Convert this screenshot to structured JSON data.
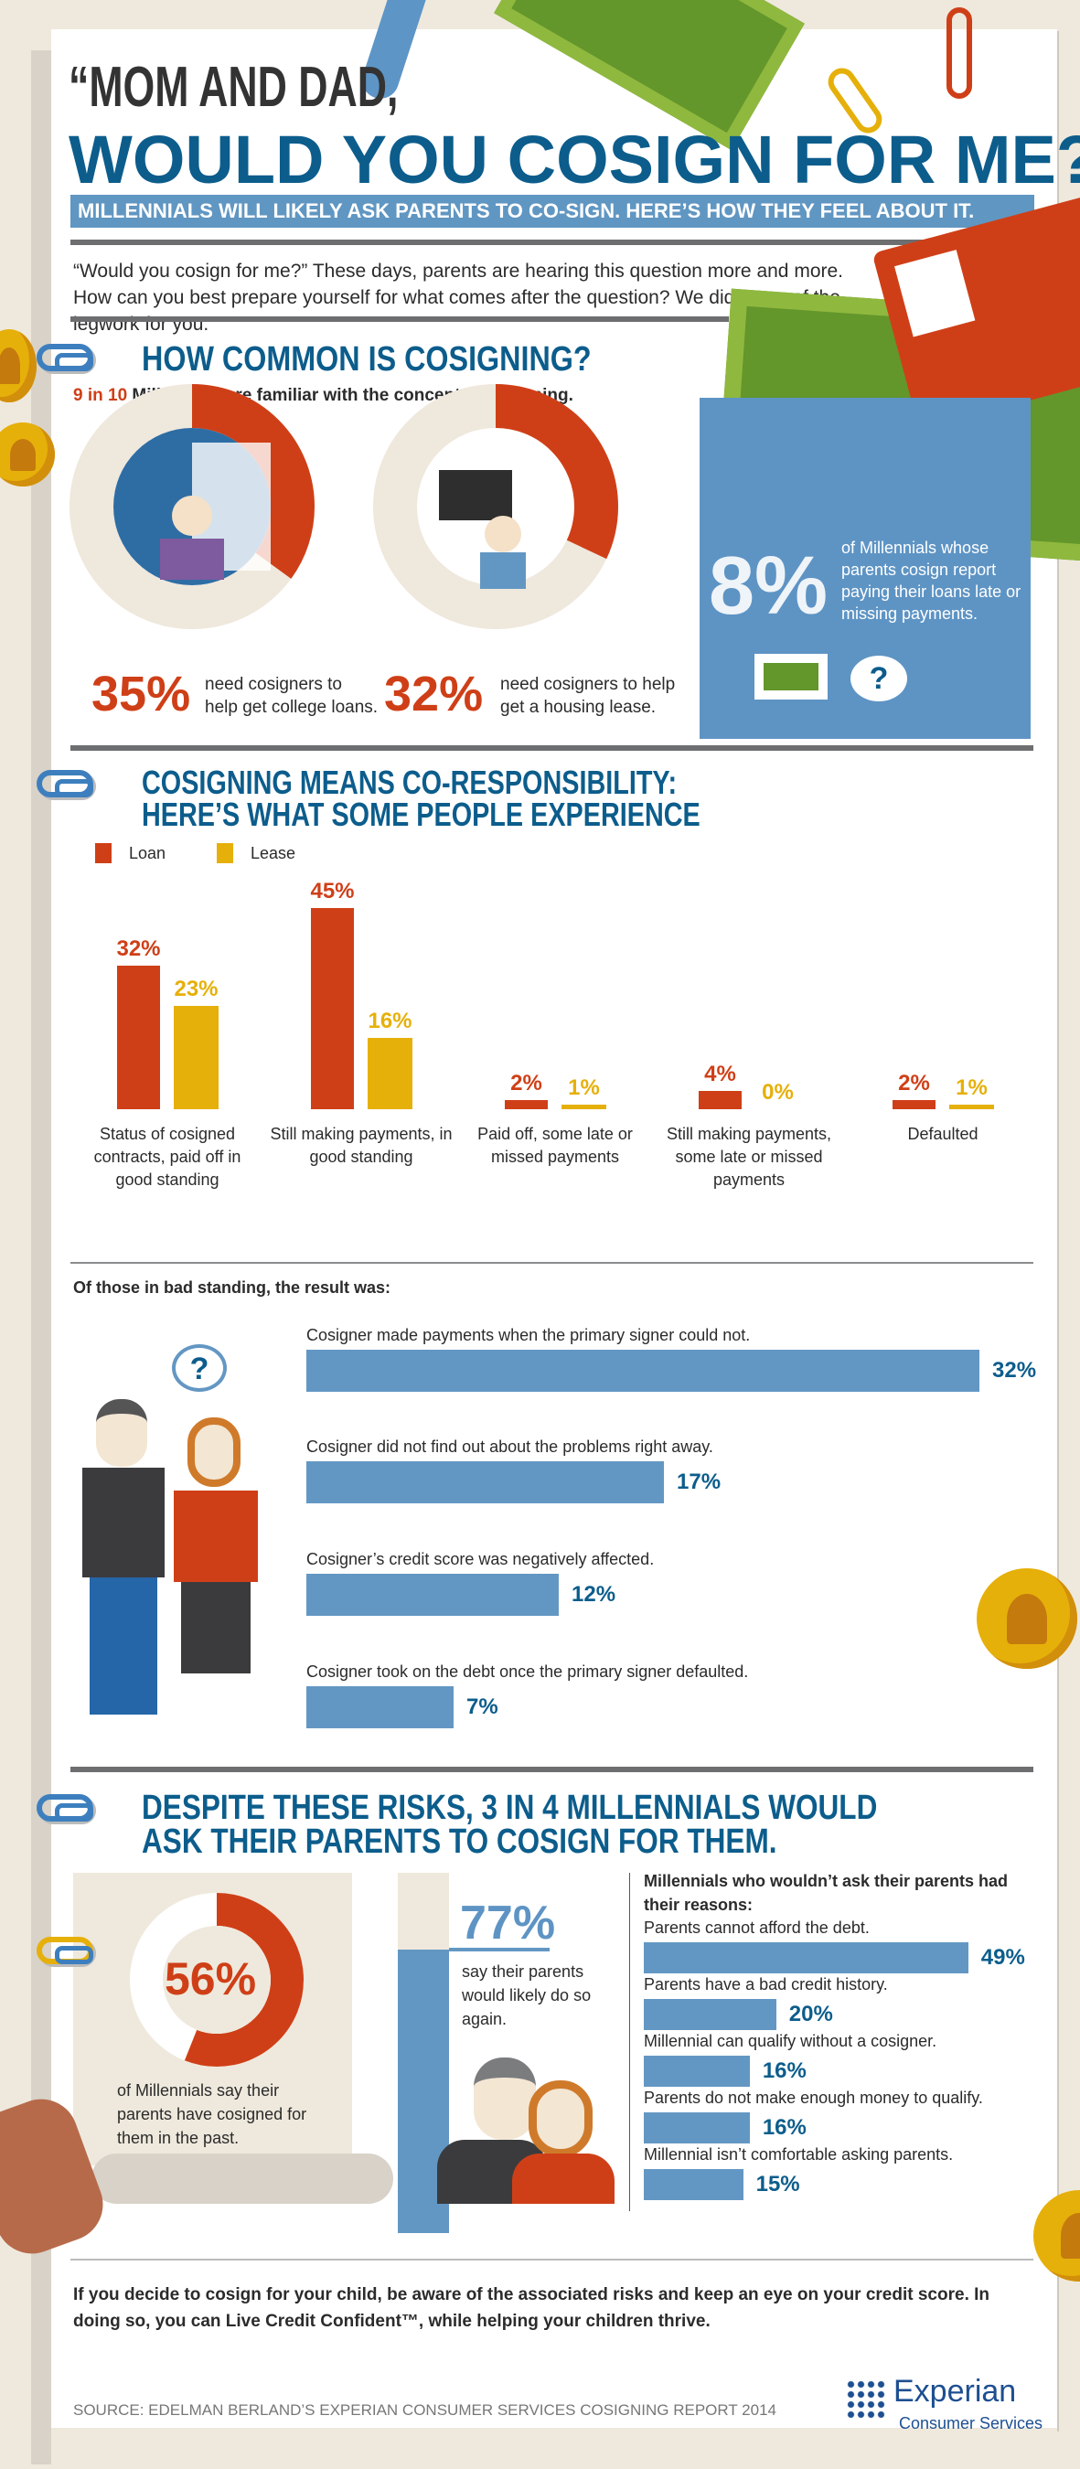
{
  "header": {
    "title_line1": "“MOM AND DAD,",
    "title_line2": "WOULD YOU COSIGN FOR ME?”",
    "banner": "MILLENNIALS WILL LIKELY ASK PARENTS TO CO-SIGN. HERE’S HOW THEY FEEL ABOUT IT.",
    "intro": "“Would you cosign for me?” These days, parents are hearing this question more and more. How can you best prepare yourself for what comes after the question? We did some of the legwork for you."
  },
  "section1": {
    "heading": "HOW COMMON IS COSIGNING?",
    "familiar_highlight": "9 in 10",
    "familiar_text": " Millennials are familiar with the concept of cosigning.",
    "stats": [
      {
        "value": "35%",
        "fraction": 0.35,
        "caption": "need cosigners to help get college loans."
      },
      {
        "value": "32%",
        "fraction": 0.32,
        "caption": "need cosigners to help get a housing lease."
      }
    ],
    "card_value": "8%",
    "card_text": "of Millennials whose parents cosign report paying their loans late or missing payments.",
    "card_bubble": "?"
  },
  "section2": {
    "heading_line1": "COSIGNING MEANS CO-RESPONSIBILITY:",
    "heading_line2": "HERE’S WHAT SOME PEOPLE EXPERIENCE",
    "bad_standing_title": "Of those in bad standing, the result was:",
    "bubble": "?"
  },
  "section3": {
    "heading_line1": "DESPITE THESE RISKS, 3 IN 4 MILLENNIALS WOULD",
    "heading_line2": "ASK THEIR PARENTS TO COSIGN FOR THEM.",
    "donut_value": "56%",
    "donut_fraction": 0.56,
    "donut_caption": "of Millennials say their parents have cosigned for them in the past.",
    "again_value": "77%",
    "again_caption": "say their parents would likely do so again.",
    "reasons_title": "Millennials who wouldn’t ask their parents had their reasons:"
  },
  "chart_data": [
    {
      "type": "bar",
      "categories": [
        "Status of cosigned contracts, paid off in good standing",
        "Still making payments, in good standing",
        "Paid off, some late or missed payments",
        "Still making payments, some late or missed payments",
        "Defaulted"
      ],
      "series": [
        {
          "name": "Loan",
          "color": "#cf3f17",
          "values": [
            32,
            45,
            2,
            4,
            2
          ]
        },
        {
          "name": "Lease",
          "color": "#e6b00a",
          "values": [
            23,
            16,
            1,
            0,
            1
          ]
        }
      ],
      "legend": "top-left"
    },
    {
      "type": "bar",
      "orientation": "horizontal",
      "categories": [
        "Cosigner made payments when the primary signer could not.",
        "Cosigner did not find out about the problems right away.",
        "Cosigner’s credit score was negatively affected.",
        "Cosigner took on the debt once the primary signer defaulted."
      ],
      "values": [
        32,
        17,
        12,
        7
      ],
      "color": "#6397c3"
    },
    {
      "type": "bar",
      "orientation": "horizontal",
      "categories": [
        "Parents cannot afford the debt.",
        "Parents have a bad credit history.",
        "Millennial can qualify without a cosigner.",
        "Parents do not make enough money to qualify.",
        "Millennial isn’t comfortable asking parents."
      ],
      "values": [
        49,
        20,
        16,
        16,
        15
      ],
      "color": "#6397c3"
    }
  ],
  "footer": {
    "closing": "If you decide to cosign for your child, be aware of the associated risks and keep an eye on your credit score. In doing so, you can Live Credit Confident™, while helping your children thrive.",
    "source": "SOURCE: EDELMAN BERLAND’S EXPERIAN CONSUMER SERVICES COSIGNING REPORT 2014",
    "logo_name": "Experian",
    "logo_sub": "Consumer Services"
  },
  "colors": {
    "heading": "#0c5d8c",
    "loan": "#cf3f17",
    "lease": "#e6b00a",
    "bar": "#6397c3",
    "background": "#efe9dd"
  }
}
